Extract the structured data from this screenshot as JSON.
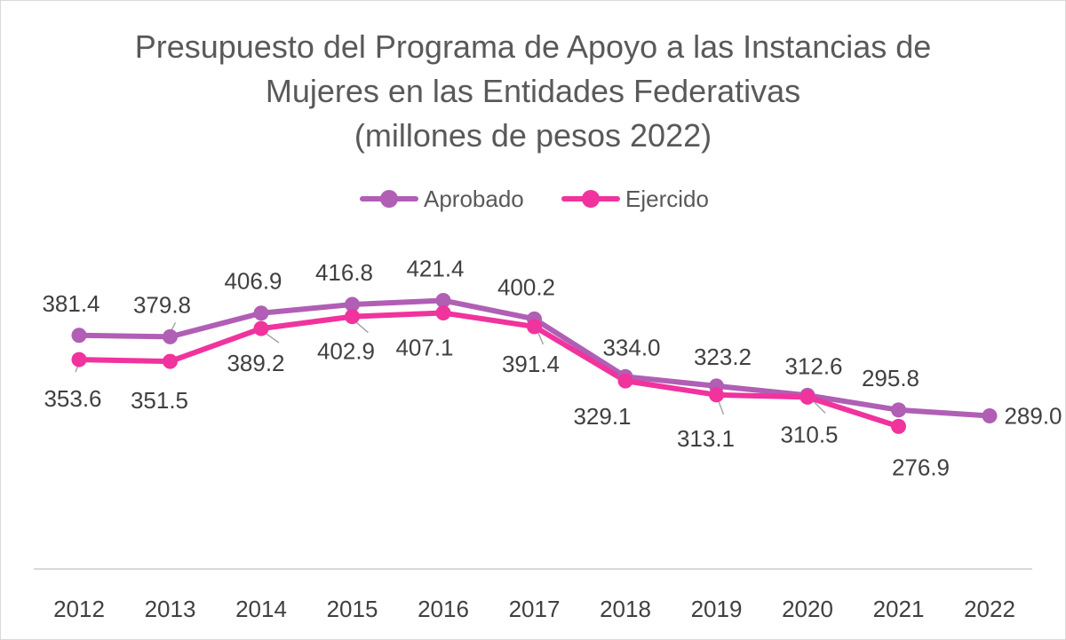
{
  "chart_data": {
    "type": "line",
    "title_lines": [
      "Presupuesto del Programa de Apoyo a las Instancias de",
      "Mujeres en las Entidades Federativas",
      "(millones de pesos 2022)"
    ],
    "categories": [
      "2012",
      "2013",
      "2014",
      "2015",
      "2016",
      "2017",
      "2018",
      "2019",
      "2020",
      "2021",
      "2022"
    ],
    "series": [
      {
        "name": "Aprobado",
        "color": "#b05fb5",
        "values": [
          381.4,
          379.8,
          406.9,
          416.8,
          421.4,
          400.2,
          334.0,
          323.2,
          312.6,
          295.8,
          289.0
        ],
        "labels": [
          "381.4",
          "379.8",
          "406.9",
          "416.8",
          "421.4",
          "400.2",
          "334.0",
          "323.2",
          "312.6",
          "295.8",
          "289.0"
        ]
      },
      {
        "name": "Ejercido",
        "color": "#f0339d",
        "values": [
          353.6,
          351.5,
          389.2,
          402.9,
          407.1,
          391.4,
          329.1,
          313.1,
          310.5,
          276.9,
          null
        ],
        "labels": [
          "353.6",
          "351.5",
          "389.2",
          "402.9",
          "407.1",
          "391.4",
          "329.1",
          "313.1",
          "310.5",
          "276.9",
          ""
        ]
      }
    ],
    "grid": false,
    "legend_position": "top"
  }
}
